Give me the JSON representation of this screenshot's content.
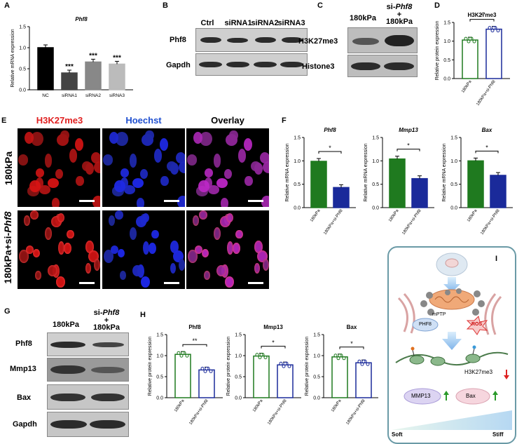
{
  "A": {
    "label": "A",
    "title": "Phf8",
    "ylabel": "Relative mRNA expression",
    "categories": [
      "NC",
      "siRNA1",
      "siRNA2",
      "siRNA3"
    ],
    "values": [
      1.0,
      0.4,
      0.66,
      0.61
    ],
    "stars": [
      "",
      "***",
      "***",
      "***"
    ],
    "yticks": [
      "0.0",
      "0.5",
      "1.0",
      "1.5"
    ]
  },
  "B": {
    "label": "B",
    "cols": [
      "Ctrl",
      "siRNA1",
      "siRNA2",
      "siRNA3"
    ],
    "rows": [
      "Phf8",
      "Gapdh"
    ]
  },
  "C": {
    "label": "C",
    "col1": "180kPa",
    "col2a": "si-",
    "col2b": "Phf8",
    "col2c": "+",
    "col2d": "180kPa",
    "rows": [
      "H3K27me3",
      "Histone3"
    ]
  },
  "D": {
    "label": "D",
    "title": "H3K27me3",
    "ylabel": "Relative protein expression",
    "categories": [
      "180kPa",
      "180kPa+si-Phf8"
    ],
    "values": [
      1.03,
      1.32
    ],
    "star": "*",
    "yticks": [
      "0.0",
      "0.5",
      "1.0",
      "1.5"
    ]
  },
  "E": {
    "label": "E",
    "cols": [
      "H3K27me3",
      "Hoechst",
      "Overlay"
    ],
    "rows": [
      "180kPa",
      "180kPa+si-Phf8"
    ],
    "colors": [
      "#e02020",
      "#2050d0",
      "#000000"
    ]
  },
  "F": {
    "label": "F",
    "ylabel": "Relative mRNA expression",
    "yticks": [
      "0.0",
      "0.5",
      "1.0",
      "1.5"
    ],
    "categories": [
      "180kPa",
      "180kPa+si-Phf8"
    ],
    "plots": [
      {
        "title": "Phf8",
        "values": [
          0.99,
          0.43
        ],
        "star": "*"
      },
      {
        "title": "Mmp13",
        "values": [
          1.04,
          0.62
        ],
        "star": "*"
      },
      {
        "title": "Bax",
        "values": [
          1.0,
          0.69
        ],
        "star": "*"
      }
    ]
  },
  "G": {
    "label": "G",
    "col1": "180kPa",
    "col2a": "si-",
    "col2b": "Phf8",
    "col2c": "+",
    "col2d": "180kPa",
    "rows": [
      "Phf8",
      "Mmp13",
      "Bax",
      "Gapdh"
    ]
  },
  "H": {
    "label": "H",
    "ylabel": "Relative protein expression",
    "yticks": [
      "0.0",
      "0.5",
      "1.0",
      "1.5"
    ],
    "categories": [
      "180kPa",
      "180kPa+si-Phf8"
    ],
    "plots": [
      {
        "title": "Phf8",
        "values": [
          1.03,
          0.66
        ],
        "star": "**"
      },
      {
        "title": "Mmp13",
        "values": [
          0.99,
          0.78
        ],
        "star": "*"
      },
      {
        "title": "Bax",
        "values": [
          0.97,
          0.83
        ],
        "star": "*"
      }
    ]
  },
  "I": {
    "label": "I",
    "mptp": "mPTP",
    "phf8": "PHF8",
    "ros": "ROS",
    "h3": "H3K27me3",
    "mmp13": "MMP13",
    "bax": "Bax",
    "soft": "Soft",
    "stiff": "Stiff"
  },
  "chart_data": [
    {
      "type": "bar",
      "title": "Phf8",
      "categories": [
        "NC",
        "siRNA1",
        "siRNA2",
        "siRNA3"
      ],
      "values": [
        1.0,
        0.4,
        0.66,
        0.61
      ],
      "ylabel": "Relative mRNA expression",
      "ylim": [
        0,
        1.5
      ]
    },
    {
      "type": "bar",
      "title": "H3K27me3",
      "categories": [
        "180kPa",
        "180kPa+si-Phf8"
      ],
      "values": [
        1.03,
        1.32
      ],
      "ylabel": "Relative protein expression",
      "ylim": [
        0,
        1.5
      ]
    },
    {
      "type": "bar",
      "title": "Phf8",
      "categories": [
        "180kPa",
        "180kPa+si-Phf8"
      ],
      "values": [
        0.99,
        0.43
      ],
      "ylabel": "Relative mRNA expression",
      "ylim": [
        0,
        1.5
      ]
    },
    {
      "type": "bar",
      "title": "Mmp13",
      "categories": [
        "180kPa",
        "180kPa+si-Phf8"
      ],
      "values": [
        1.04,
        0.62
      ],
      "ylabel": "Relative mRNA expression",
      "ylim": [
        0,
        1.5
      ]
    },
    {
      "type": "bar",
      "title": "Bax",
      "categories": [
        "180kPa",
        "180kPa+si-Phf8"
      ],
      "values": [
        1.0,
        0.69
      ],
      "ylabel": "Relative mRNA expression",
      "ylim": [
        0,
        1.5
      ]
    },
    {
      "type": "bar",
      "title": "Phf8",
      "categories": [
        "180kPa",
        "180kPa+si-Phf8"
      ],
      "values": [
        1.03,
        0.66
      ],
      "ylabel": "Relative protein expression",
      "ylim": [
        0,
        1.5
      ]
    },
    {
      "type": "bar",
      "title": "Mmp13",
      "categories": [
        "180kPa",
        "180kPa+si-Phf8"
      ],
      "values": [
        0.99,
        0.78
      ],
      "ylabel": "Relative protein expression",
      "ylim": [
        0,
        1.5
      ]
    },
    {
      "type": "bar",
      "title": "Bax",
      "categories": [
        "180kPa",
        "180kPa+si-Phf8"
      ],
      "values": [
        0.97,
        0.83
      ],
      "ylabel": "Relative protein expression",
      "ylim": [
        0,
        1.5
      ]
    }
  ]
}
